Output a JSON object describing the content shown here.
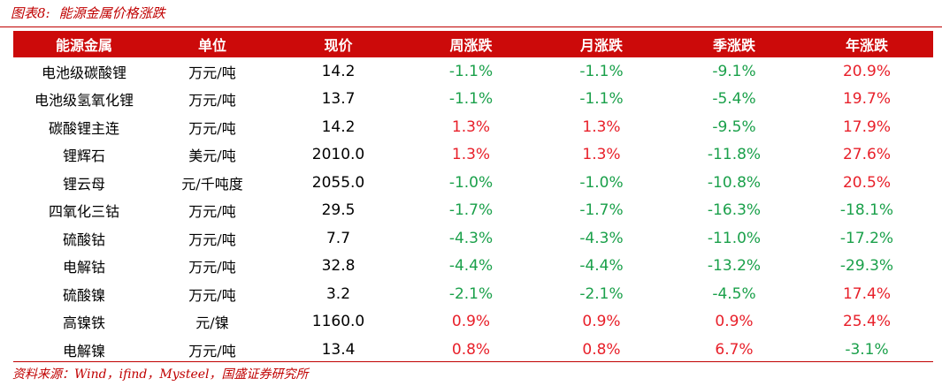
{
  "caption": {
    "label": "图表8:",
    "title": "能源金属价格涨跌"
  },
  "table": {
    "header": [
      "能源金属",
      "单位",
      "现价",
      "周涨跌",
      "月涨跌",
      "季涨跌",
      "年涨跌"
    ],
    "rows": [
      [
        "电池级碳酸锂",
        "万元/吨",
        "14.2",
        "-1.1%",
        "-1.1%",
        "-9.1%",
        "20.9%"
      ],
      [
        "电池级氢氧化锂",
        "万元/吨",
        "13.7",
        "-1.1%",
        "-1.1%",
        "-5.4%",
        "19.7%"
      ],
      [
        "碳酸锂主连",
        "万元/吨",
        "14.2",
        "1.3%",
        "1.3%",
        "-9.5%",
        "17.9%"
      ],
      [
        "锂辉石",
        "美元/吨",
        "2010.0",
        "1.3%",
        "1.3%",
        "-11.8%",
        "27.6%"
      ],
      [
        "锂云母",
        "元/千吨度",
        "2055.0",
        "-1.0%",
        "-1.0%",
        "-10.8%",
        "20.5%"
      ],
      [
        "四氧化三钴",
        "万元/吨",
        "29.5",
        "-1.7%",
        "-1.7%",
        "-16.3%",
        "-18.1%"
      ],
      [
        "硫酸钴",
        "万元/吨",
        "7.7",
        "-4.3%",
        "-4.3%",
        "-11.0%",
        "-17.2%"
      ],
      [
        "电解钴",
        "万元/吨",
        "32.8",
        "-4.4%",
        "-4.4%",
        "-13.2%",
        "-29.3%"
      ],
      [
        "硫酸镍",
        "万元/吨",
        "3.2",
        "-2.1%",
        "-2.1%",
        "-4.5%",
        "17.4%"
      ],
      [
        "高镍铁",
        "元/镍",
        "1160.0",
        "0.9%",
        "0.9%",
        "0.9%",
        "25.4%"
      ],
      [
        "电解镍",
        "万元/吨",
        "13.4",
        "0.8%",
        "0.8%",
        "6.7%",
        "-3.1%"
      ]
    ],
    "up_color": "#e8202a",
    "down_color": "#1aa04a",
    "header_color": "#cc0a0a"
  },
  "source": "资料来源：Wind，ifind，Mysteel，国盛证券研究所"
}
